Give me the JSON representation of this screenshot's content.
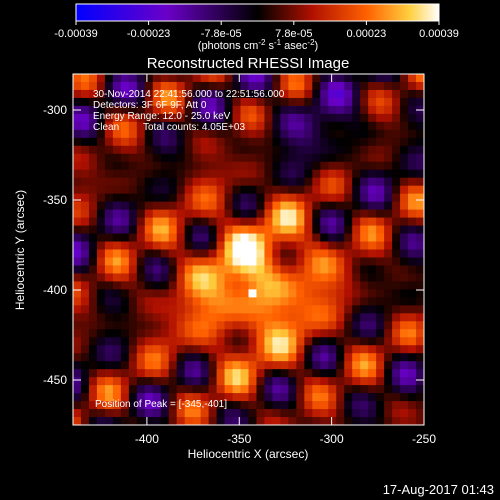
{
  "chart_data": {
    "type": "heatmap",
    "title": "Reconstructed RHESSI Image",
    "xlabel": "Heliocentric X (arcsec)",
    "ylabel": "Heliocentric Y (arcsec)",
    "xlim": [
      -440,
      -250
    ],
    "ylim": [
      -475,
      -280
    ],
    "xticks": [
      -400,
      -350,
      -300,
      -250
    ],
    "yticks": [
      -300,
      -350,
      -400,
      -450
    ],
    "colorbar": {
      "ticks": [
        "-0.00039",
        "-0.00023",
        "-7.8e-05",
        "7.8e-05",
        "0.00023",
        "0.00039"
      ],
      "range": [
        -0.00039,
        0.00039
      ],
      "units": {
        "base": "(photons cm",
        "exp1": "-2",
        "mid1": " s",
        "exp2": "-1",
        "mid2": " asec",
        "exp3": "-2",
        "tail": ")"
      }
    },
    "annotations": {
      "time": "30-Nov-2014 22:41:56.000 to 22:51:56.000",
      "detectors": "Detectors: 3F 6F 9F, Att 0",
      "energy": "Energy Range: 12.0 - 25.0 keV",
      "method": "Clean",
      "counts": "Total counts: 4.05E+03",
      "peak": "Position of Peak = [-345,-401]"
    },
    "peak": [
      -345,
      -401
    ],
    "timestamp": "17-Aug-2017 01:43"
  },
  "colors": {
    "background": "#000000",
    "foreground": "#ffffff",
    "colormap": [
      "#0000ff",
      "#6a00c8",
      "#000000",
      "#b01000",
      "#ff6000",
      "#ffd040",
      "#ffffff"
    ]
  }
}
